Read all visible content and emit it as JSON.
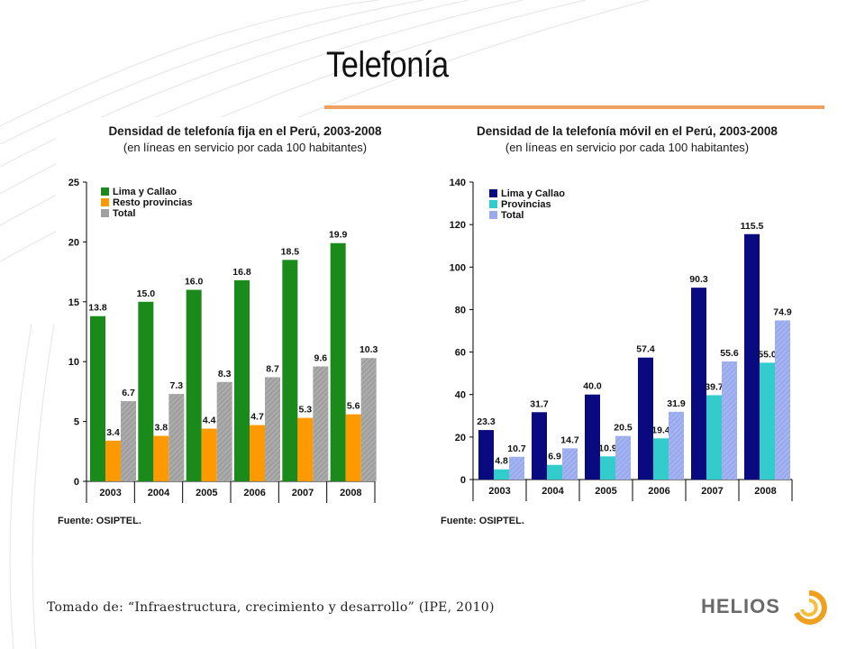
{
  "slide": {
    "title": "Telefonía",
    "footer": "Tomado de: “Infraestructura, crecimiento y desarrollo” (IPE, 2010)",
    "logo_text": "HELIOS",
    "accent_color": "#f0a060"
  },
  "chart_data": [
    {
      "type": "bar",
      "title": "Densidad de telefonía fija en el Perú, 2003-2008",
      "subtitle": "(en líneas en servicio por cada 100 habitantes)",
      "source": "Fuente: OSIPTEL.",
      "categories": [
        "2003",
        "2004",
        "2005",
        "2006",
        "2007",
        "2008"
      ],
      "series": [
        {
          "name": "Lima y Callao",
          "values": [
            13.8,
            15.0,
            16.0,
            16.8,
            18.5,
            19.9
          ],
          "labels": [
            "13.8",
            "15.0",
            "16.0",
            "16.8",
            "18.5",
            "19.9"
          ],
          "color": "#1a8a1a"
        },
        {
          "name": "Resto provincias",
          "values": [
            3.4,
            3.8,
            4.4,
            4.7,
            5.3,
            5.6
          ],
          "labels": [
            "3.4",
            "3.8",
            "4.4",
            "4.7",
            "5.3",
            "5.6"
          ],
          "color": "#ff9900"
        },
        {
          "name": "Total",
          "values": [
            6.7,
            7.3,
            8.3,
            8.7,
            9.6,
            10.3
          ],
          "labels": [
            "6.7",
            "7.3",
            "8.3",
            "8.7",
            "9.6",
            "10.3"
          ],
          "color": "#a0a0a0"
        }
      ],
      "ylim": [
        0,
        25
      ],
      "yticks": [
        0,
        5,
        10,
        15,
        20,
        25
      ],
      "legend": "top-left",
      "grid": false
    },
    {
      "type": "bar",
      "title": "Densidad de la telefonía móvil en el Perú, 2003-2008",
      "subtitle": "(en líneas en servicio por cada 100 habitantes)",
      "source": "Fuente: OSIPTEL.",
      "categories": [
        "2003",
        "2004",
        "2005",
        "2006",
        "2007",
        "2008"
      ],
      "series": [
        {
          "name": "Lima y Callao",
          "values": [
            23.3,
            31.7,
            40.0,
            57.4,
            90.3,
            115.5
          ],
          "labels": [
            "23.3",
            "31.7",
            "40.0",
            "57.4",
            "90.3",
            "115.5"
          ],
          "color": "#0a0a80"
        },
        {
          "name": "Provincias",
          "values": [
            4.8,
            6.9,
            10.9,
            19.4,
            39.7,
            55.0
          ],
          "labels": [
            "4.8",
            "6.9",
            "10.9",
            "19.4",
            "39.7",
            "55.0"
          ],
          "color": "#33cccc"
        },
        {
          "name": "Total",
          "values": [
            10.7,
            14.7,
            20.5,
            31.9,
            55.6,
            74.9
          ],
          "labels": [
            "10.7",
            "14.7",
            "20.5",
            "31.9",
            "55.6",
            "74.9"
          ],
          "color": "#99aaee"
        }
      ],
      "ylim": [
        0,
        140
      ],
      "yticks": [
        0,
        20,
        40,
        60,
        80,
        100,
        120,
        140
      ],
      "legend": "top-left",
      "grid": false
    }
  ]
}
